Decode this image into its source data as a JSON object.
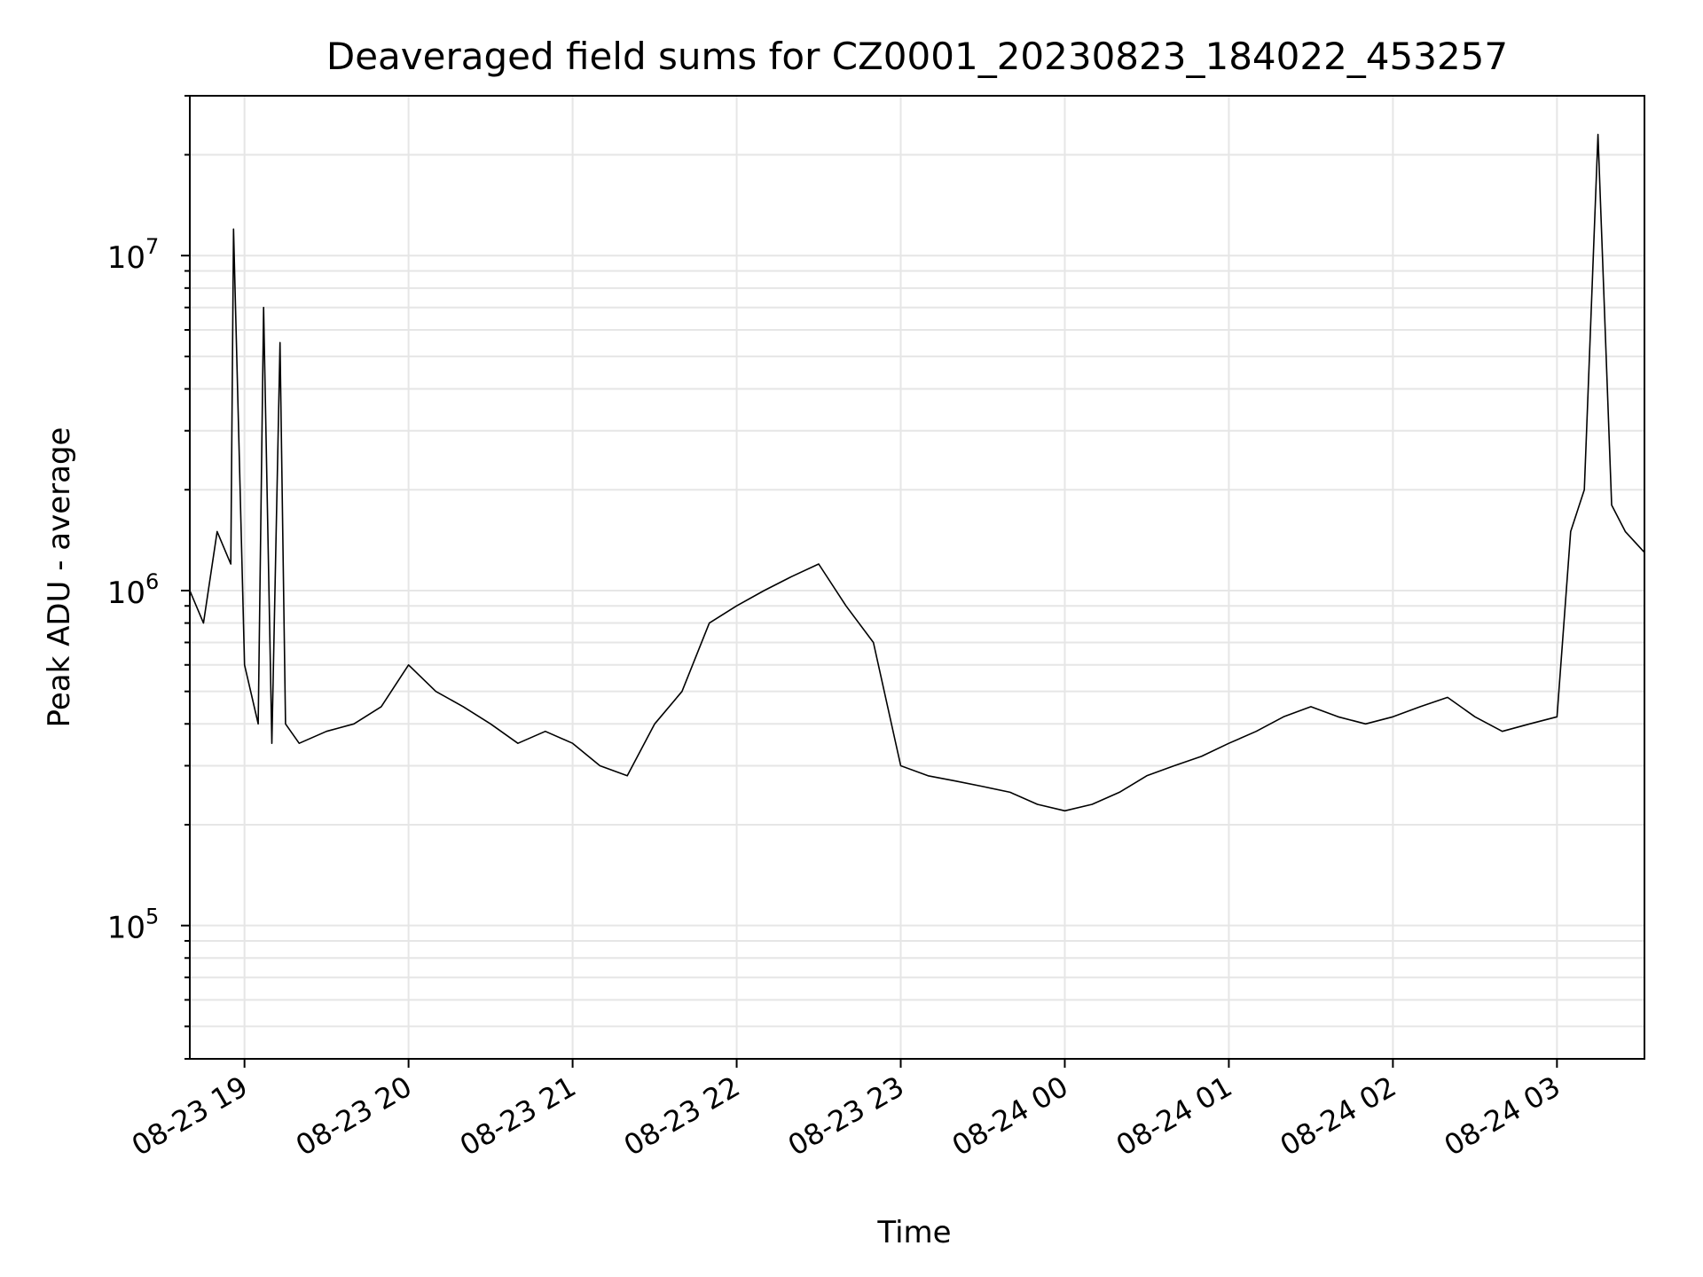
{
  "chart_data": {
    "type": "line",
    "title": "Deaveraged field sums for CZ0001_20230823_184022_453257",
    "xlabel": "Time",
    "ylabel": "Peak ADU - average",
    "yscale": "log",
    "grid": true,
    "xlim": [
      "2023-08-23 18:40",
      "2023-08-24 03:32"
    ],
    "ylim": [
      40000,
      30000000
    ],
    "x_ticks": [
      {
        "value": "2023-08-23 19:00",
        "label": "08-23 19"
      },
      {
        "value": "2023-08-23 20:00",
        "label": "08-23 20"
      },
      {
        "value": "2023-08-23 21:00",
        "label": "08-23 21"
      },
      {
        "value": "2023-08-23 22:00",
        "label": "08-23 22"
      },
      {
        "value": "2023-08-23 23:00",
        "label": "08-23 23"
      },
      {
        "value": "2023-08-24 00:00",
        "label": "08-24 00"
      },
      {
        "value": "2023-08-24 01:00",
        "label": "08-24 01"
      },
      {
        "value": "2023-08-24 02:00",
        "label": "08-24 02"
      },
      {
        "value": "2023-08-24 03:00",
        "label": "08-24 03"
      }
    ],
    "y_ticks": [
      {
        "value": 100000,
        "base": "10",
        "exp": "5"
      },
      {
        "value": 1000000,
        "base": "10",
        "exp": "6"
      },
      {
        "value": 10000000,
        "base": "10",
        "exp": "7"
      }
    ],
    "line_color": "#000000",
    "grid_color": "#e6e6e6",
    "series": [
      {
        "x": [
          "2023-08-23 18:40",
          "2023-08-23 18:45",
          "2023-08-23 18:50",
          "2023-08-23 18:55",
          "2023-08-23 18:56",
          "2023-08-23 19:00",
          "2023-08-23 19:05",
          "2023-08-23 19:07",
          "2023-08-23 19:10",
          "2023-08-23 19:13",
          "2023-08-23 19:15",
          "2023-08-23 19:20",
          "2023-08-23 19:30",
          "2023-08-23 19:40",
          "2023-08-23 19:50",
          "2023-08-23 20:00",
          "2023-08-23 20:10",
          "2023-08-23 20:20",
          "2023-08-23 20:30",
          "2023-08-23 20:40",
          "2023-08-23 20:50",
          "2023-08-23 21:00",
          "2023-08-23 21:10",
          "2023-08-23 21:20",
          "2023-08-23 21:30",
          "2023-08-23 21:40",
          "2023-08-23 21:50",
          "2023-08-23 22:00",
          "2023-08-23 22:10",
          "2023-08-23 22:20",
          "2023-08-23 22:30",
          "2023-08-23 22:40",
          "2023-08-23 22:50",
          "2023-08-23 23:00",
          "2023-08-23 23:10",
          "2023-08-23 23:20",
          "2023-08-23 23:30",
          "2023-08-23 23:40",
          "2023-08-23 23:50",
          "2023-08-24 00:00",
          "2023-08-24 00:10",
          "2023-08-24 00:20",
          "2023-08-24 00:30",
          "2023-08-24 00:40",
          "2023-08-24 00:50",
          "2023-08-24 01:00",
          "2023-08-24 01:10",
          "2023-08-24 01:20",
          "2023-08-24 01:30",
          "2023-08-24 01:40",
          "2023-08-24 01:50",
          "2023-08-24 02:00",
          "2023-08-24 02:10",
          "2023-08-24 02:20",
          "2023-08-24 02:30",
          "2023-08-24 02:40",
          "2023-08-24 02:50",
          "2023-08-24 03:00",
          "2023-08-24 03:05",
          "2023-08-24 03:10",
          "2023-08-24 03:15",
          "2023-08-24 03:20",
          "2023-08-24 03:25",
          "2023-08-24 03:32"
        ],
        "y": [
          1000000,
          800000,
          1500000,
          1200000,
          12000000,
          600000,
          400000,
          7000000,
          350000,
          5500000,
          400000,
          350000,
          380000,
          400000,
          450000,
          600000,
          500000,
          450000,
          400000,
          350000,
          380000,
          350000,
          300000,
          280000,
          400000,
          500000,
          800000,
          900000,
          1000000,
          1100000,
          1200000,
          900000,
          700000,
          300000,
          280000,
          270000,
          260000,
          250000,
          230000,
          220000,
          230000,
          250000,
          280000,
          300000,
          320000,
          350000,
          380000,
          420000,
          450000,
          420000,
          400000,
          420000,
          450000,
          480000,
          420000,
          380000,
          400000,
          420000,
          1500000,
          2000000,
          23000000,
          1800000,
          1500000,
          1300000
        ]
      }
    ]
  }
}
